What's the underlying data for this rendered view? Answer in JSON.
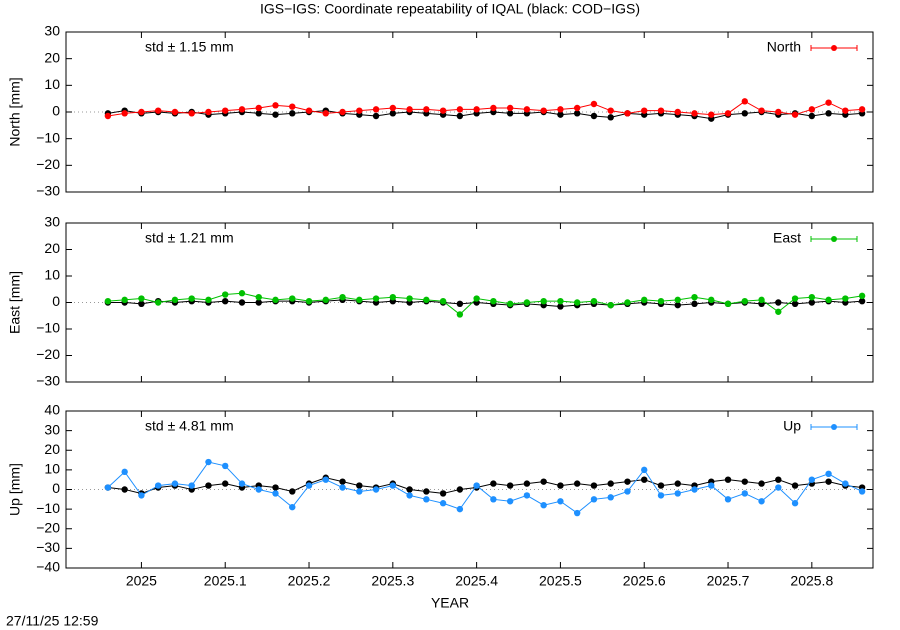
{
  "title": "IGS−IGS: Coordinate repeatability of IQAL (black: COD−IGS)",
  "timestamp": "27/11/25 12:59",
  "xlabel": "YEAR",
  "chart_data": [
    {
      "type": "scatter",
      "ylabel": "North [mm]",
      "annotation": "std ± 1.15 mm",
      "legend": "top-right",
      "xlim": [
        2024.91,
        2025.873
      ],
      "xticks": [
        2025,
        2025.1,
        2025.2,
        2025.3,
        2025.4,
        2025.5,
        2025.6,
        2025.7,
        2025.8
      ],
      "ylim": [
        -30,
        30
      ],
      "yticks": [
        {
          "value": -30,
          "label": "−30"
        },
        {
          "value": -20,
          "label": "−20"
        },
        {
          "value": -10,
          "label": "−10"
        },
        0,
        10,
        20,
        30
      ],
      "x": [
        2024.96,
        2024.98,
        2025.0,
        2025.02,
        2025.04,
        2025.06,
        2025.08,
        2025.1,
        2025.12,
        2025.14,
        2025.16,
        2025.18,
        2025.2,
        2025.22,
        2025.24,
        2025.26,
        2025.28,
        2025.3,
        2025.32,
        2025.34,
        2025.36,
        2025.38,
        2025.4,
        2025.42,
        2025.44,
        2025.46,
        2025.48,
        2025.5,
        2025.52,
        2025.54,
        2025.56,
        2025.58,
        2025.6,
        2025.62,
        2025.64,
        2025.66,
        2025.68,
        2025.7,
        2025.72,
        2025.74,
        2025.76,
        2025.78,
        2025.8,
        2025.82,
        2025.84,
        2025.86
      ],
      "series": [
        {
          "color": "#000000",
          "values": [
            -0.5,
            0.5,
            -0.5,
            0,
            -0.5,
            0,
            -1,
            -0.5,
            0,
            -0.5,
            -1,
            -0.5,
            0,
            0.5,
            -0.5,
            -1,
            -1.5,
            -0.5,
            0,
            -0.5,
            -1,
            -1.5,
            -0.5,
            0,
            -0.5,
            -0.5,
            0,
            -1,
            -0.5,
            -1.5,
            -2,
            -0.5,
            -1,
            -0.5,
            -1,
            -1.5,
            -2.5,
            -1,
            -0.5,
            0,
            -1,
            -0.5,
            -1.5,
            -0.5,
            -1,
            -0.5
          ]
        },
        {
          "name": "North",
          "color": "#ff0000",
          "values": [
            -1.5,
            -0.5,
            0,
            0.5,
            0,
            -0.5,
            0,
            0.5,
            1,
            1.5,
            2.5,
            2,
            0.5,
            -0.5,
            0,
            0.5,
            1,
            1.5,
            1,
            1,
            0.5,
            1,
            1,
            1.5,
            1.5,
            1,
            0.5,
            1,
            1.5,
            3,
            0.5,
            -0.5,
            0.5,
            0.5,
            0,
            -0.5,
            -1,
            -0.5,
            4,
            0.5,
            0,
            -1,
            1,
            3.5,
            0.5,
            1
          ]
        }
      ]
    },
    {
      "type": "scatter",
      "ylabel": "East [mm]",
      "annotation": "std ± 1.21 mm",
      "legend": "top-right",
      "xlim": [
        2024.91,
        2025.873
      ],
      "xticks": [
        2025,
        2025.1,
        2025.2,
        2025.3,
        2025.4,
        2025.5,
        2025.6,
        2025.7,
        2025.8
      ],
      "ylim": [
        -30,
        30
      ],
      "yticks": [
        {
          "value": -30,
          "label": "−30"
        },
        {
          "value": -20,
          "label": "−20"
        },
        {
          "value": -10,
          "label": "−10"
        },
        0,
        10,
        20,
        30
      ],
      "x": [
        2024.96,
        2024.98,
        2025.0,
        2025.02,
        2025.04,
        2025.06,
        2025.08,
        2025.1,
        2025.12,
        2025.14,
        2025.16,
        2025.18,
        2025.2,
        2025.22,
        2025.24,
        2025.26,
        2025.28,
        2025.3,
        2025.32,
        2025.34,
        2025.36,
        2025.38,
        2025.4,
        2025.42,
        2025.44,
        2025.46,
        2025.48,
        2025.5,
        2025.52,
        2025.54,
        2025.56,
        2025.58,
        2025.6,
        2025.62,
        2025.64,
        2025.66,
        2025.68,
        2025.7,
        2025.72,
        2025.74,
        2025.76,
        2025.78,
        2025.8,
        2025.82,
        2025.84,
        2025.86
      ],
      "series": [
        {
          "color": "#000000",
          "values": [
            0,
            0,
            -0.5,
            0.5,
            0,
            0.5,
            0,
            0.5,
            0,
            0,
            0.5,
            0.5,
            0,
            0.5,
            1,
            0.5,
            0,
            0.5,
            0,
            0.5,
            0,
            -0.5,
            0,
            -0.5,
            -1,
            -0.5,
            -1,
            -1.5,
            -1,
            -0.5,
            -1,
            -0.5,
            0,
            -0.5,
            -1,
            -0.5,
            0,
            -0.5,
            0,
            -0.5,
            0,
            -0.5,
            0,
            0.5,
            0,
            0.5
          ]
        },
        {
          "name": "East",
          "color": "#00c000",
          "values": [
            0.5,
            1,
            1.5,
            0,
            1,
            1.5,
            1,
            3,
            3.5,
            2,
            1,
            1.5,
            0.5,
            1,
            2,
            1,
            1.5,
            2,
            1.5,
            1,
            0.5,
            -4.5,
            1.5,
            0.5,
            -0.5,
            0,
            0.5,
            0.5,
            0,
            0.5,
            -1,
            0,
            1,
            0.5,
            1,
            2,
            1,
            -0.5,
            0.5,
            1,
            -3.5,
            1.5,
            2,
            1,
            1.5,
            2.5
          ]
        }
      ]
    },
    {
      "type": "scatter",
      "ylabel": "Up [mm]",
      "annotation": "std ± 4.81 mm",
      "legend": "top-right",
      "xlim": [
        2024.91,
        2025.873
      ],
      "xticks": [
        2025,
        2025.1,
        2025.2,
        2025.3,
        2025.4,
        2025.5,
        2025.6,
        2025.7,
        2025.8
      ],
      "ylim": [
        -40,
        40
      ],
      "yticks": [
        {
          "value": -40,
          "label": "−40"
        },
        {
          "value": -30,
          "label": "−30"
        },
        {
          "value": -20,
          "label": "−20"
        },
        {
          "value": -10,
          "label": "−10"
        },
        0,
        10,
        20,
        30,
        40
      ],
      "x": [
        2024.96,
        2024.98,
        2025.0,
        2025.02,
        2025.04,
        2025.06,
        2025.08,
        2025.1,
        2025.12,
        2025.14,
        2025.16,
        2025.18,
        2025.2,
        2025.22,
        2025.24,
        2025.26,
        2025.28,
        2025.3,
        2025.32,
        2025.34,
        2025.36,
        2025.38,
        2025.4,
        2025.42,
        2025.44,
        2025.46,
        2025.48,
        2025.5,
        2025.52,
        2025.54,
        2025.56,
        2025.58,
        2025.6,
        2025.62,
        2025.64,
        2025.66,
        2025.68,
        2025.7,
        2025.72,
        2025.74,
        2025.76,
        2025.78,
        2025.8,
        2025.82,
        2025.84,
        2025.86
      ],
      "series": [
        {
          "color": "#000000",
          "values": [
            1,
            0,
            -2,
            1,
            2,
            0,
            2,
            3,
            1,
            2,
            1,
            -1,
            3,
            6,
            4,
            2,
            1,
            3,
            0,
            -1,
            -2,
            0,
            1,
            3,
            2,
            3,
            4,
            2,
            3,
            2,
            3,
            4,
            5,
            2,
            3,
            2,
            4,
            5,
            4,
            3,
            5,
            2,
            3,
            4,
            2,
            1
          ]
        },
        {
          "name": "Up",
          "color": "#1e90ff",
          "values": [
            1,
            9,
            -3,
            2,
            3,
            2,
            14,
            12,
            3,
            0,
            -2,
            -9,
            2,
            5,
            1,
            -1,
            0,
            2,
            -3,
            -5,
            -7,
            -10,
            2,
            -5,
            -6,
            -3,
            -8,
            -6,
            -12,
            -5,
            -4,
            -1,
            10,
            -3,
            -2,
            0,
            2,
            -5,
            -2,
            -6,
            1,
            -7,
            5,
            8,
            3,
            -1
          ]
        }
      ]
    }
  ]
}
